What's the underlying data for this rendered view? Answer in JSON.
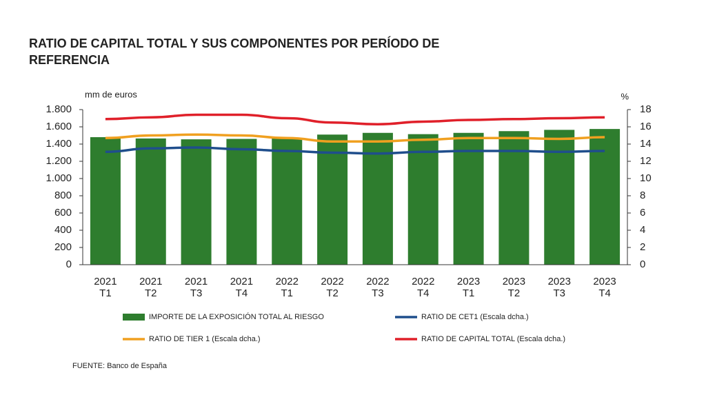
{
  "chart_data": {
    "type": "bar",
    "title": [
      "RATIO DE CAPITAL TOTAL Y SUS COMPONENTES POR PERÍODO DE",
      "REFERENCIA"
    ],
    "y_label": "mm de euros",
    "y2_label": "%",
    "source": "FUENTE: Banco de España",
    "categories": [
      [
        "2021",
        "T1"
      ],
      [
        "2021",
        "T2"
      ],
      [
        "2021",
        "T3"
      ],
      [
        "2021",
        "T4"
      ],
      [
        "2022",
        "T1"
      ],
      [
        "2022",
        "T2"
      ],
      [
        "2022",
        "T3"
      ],
      [
        "2022",
        "T4"
      ],
      [
        "2023",
        "T1"
      ],
      [
        "2023",
        "T2"
      ],
      [
        "2023",
        "T3"
      ],
      [
        "2023",
        "T4"
      ]
    ],
    "series": [
      {
        "name": "IMPORTE DE LA EXPOSICIÓN TOTAL AL RIESGO",
        "type": "bar",
        "axis": "y",
        "color": "#2e7d2e",
        "values": [
          1480,
          1465,
          1455,
          1460,
          1465,
          1510,
          1530,
          1515,
          1530,
          1550,
          1565,
          1575
        ]
      },
      {
        "name": "RATIO DE CET1 (Escala dcha.)",
        "type": "line",
        "axis": "y2",
        "color": "#1f4e8c",
        "values": [
          13.1,
          13.5,
          13.6,
          13.4,
          13.2,
          13.0,
          12.9,
          13.1,
          13.2,
          13.2,
          13.1,
          13.2
        ]
      },
      {
        "name": "RATIO DE TIER 1 (Escala dcha.)",
        "type": "line",
        "axis": "y2",
        "color": "#f0a020",
        "values": [
          14.7,
          15.0,
          15.1,
          15.0,
          14.7,
          14.3,
          14.3,
          14.5,
          14.7,
          14.7,
          14.6,
          14.8
        ]
      },
      {
        "name": "RATIO DE CAPITAL TOTAL (Escala dcha.)",
        "type": "line",
        "axis": "y2",
        "color": "#e0202a",
        "values": [
          16.9,
          17.1,
          17.4,
          17.4,
          17.0,
          16.5,
          16.3,
          16.6,
          16.8,
          16.9,
          17.0,
          17.1
        ]
      }
    ],
    "ylim": [
      0,
      1800
    ],
    "yticks": [
      0,
      200,
      400,
      600,
      800,
      {
        "value": 1000,
        "label": "1.000"
      },
      {
        "value": 1200,
        "label": "1.200"
      },
      {
        "value": 1400,
        "label": "1.400"
      },
      {
        "value": 1600,
        "label": "1.600"
      },
      {
        "value": 1800,
        "label": "1.800"
      }
    ],
    "y2lim": [
      0,
      18
    ],
    "y2ticks": [
      0,
      2,
      4,
      6,
      8,
      10,
      12,
      14,
      16,
      18
    ]
  }
}
